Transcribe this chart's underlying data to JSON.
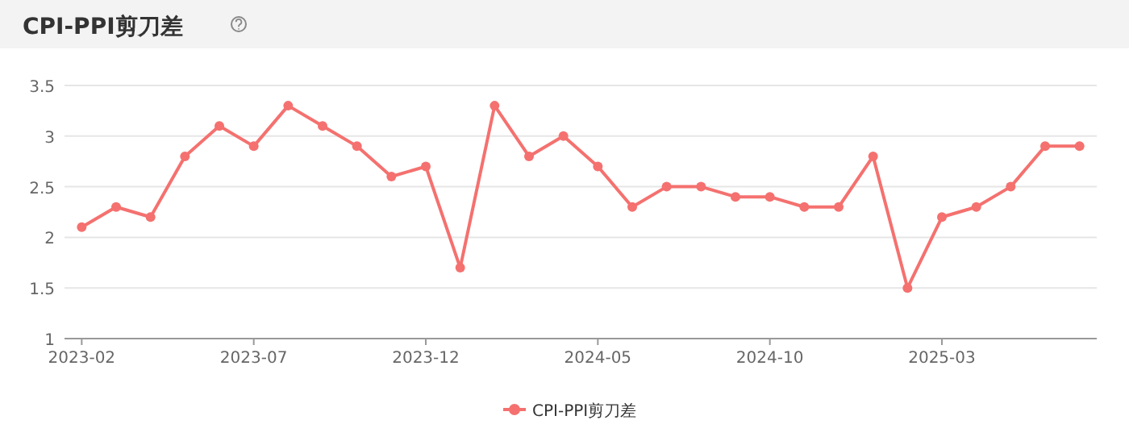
{
  "chart_data": {
    "type": "line",
    "title": "CPI-PPI剪刀差",
    "categories": [
      "2023-02",
      null,
      null,
      null,
      null,
      "2023-07",
      null,
      null,
      null,
      null,
      "2023-12",
      null,
      null,
      null,
      null,
      "2024-05",
      null,
      null,
      null,
      null,
      "2024-10",
      null,
      null,
      null,
      null,
      "2025-03",
      null,
      null,
      null,
      null
    ],
    "series": [
      {
        "name": "CPI-PPI剪刀差",
        "color": "#f4716f",
        "values": [
          2.1,
          2.3,
          2.2,
          2.8,
          3.1,
          2.9,
          3.3,
          3.1,
          2.9,
          2.6,
          2.7,
          1.7,
          3.3,
          2.8,
          3.0,
          2.7,
          2.3,
          2.5,
          2.5,
          2.4,
          2.4,
          2.3,
          2.3,
          2.8,
          1.5,
          2.2,
          2.3,
          2.5,
          2.9,
          2.9
        ]
      }
    ],
    "ylim": [
      1,
      3.5
    ],
    "yticks": [
      1,
      1.5,
      2,
      2.5,
      3,
      3.5
    ],
    "grid": "y",
    "legend": "bottom",
    "marker": "circle",
    "line_style": "solid"
  }
}
